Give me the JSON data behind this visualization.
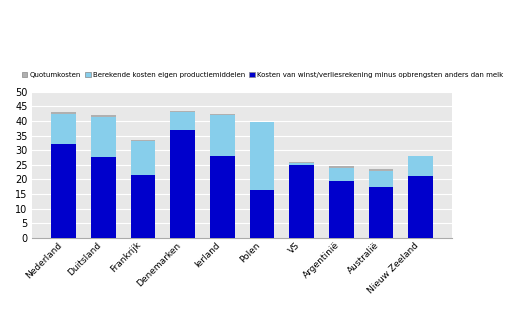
{
  "categories": [
    "Nederland",
    "Duitsland",
    "Frankrijk",
    "Denemarken",
    "Ierland",
    "Polen",
    "VS",
    "Argentinië",
    "Australië",
    "Nieuw Zeeland"
  ],
  "blue_values": [
    32,
    27.5,
    21.5,
    37,
    28,
    16.5,
    25,
    19.5,
    17.5,
    21
  ],
  "light_blue_values": [
    10.5,
    14,
    11.5,
    6,
    14,
    23,
    0.5,
    4.5,
    5.5,
    7
  ],
  "gray_values": [
    0.5,
    0.5,
    0.5,
    0.5,
    0.5,
    0,
    0.5,
    0.5,
    0.5,
    0
  ],
  "legend_labels": [
    "Quotumkosten",
    "Berekende kosten eigen productiemiddelen",
    "Kosten van winst/verliesrekening minus opbrengsten anders dan melk"
  ],
  "colors": {
    "gray": "#b0b0b0",
    "light_blue": "#87ceeb",
    "dark_blue": "#0000cc"
  },
  "ylim": [
    0,
    50
  ],
  "yticks": [
    0,
    5,
    10,
    15,
    20,
    25,
    30,
    35,
    40,
    45,
    50
  ],
  "background_color": "#ffffff",
  "ax_background": "#e8e8e8"
}
